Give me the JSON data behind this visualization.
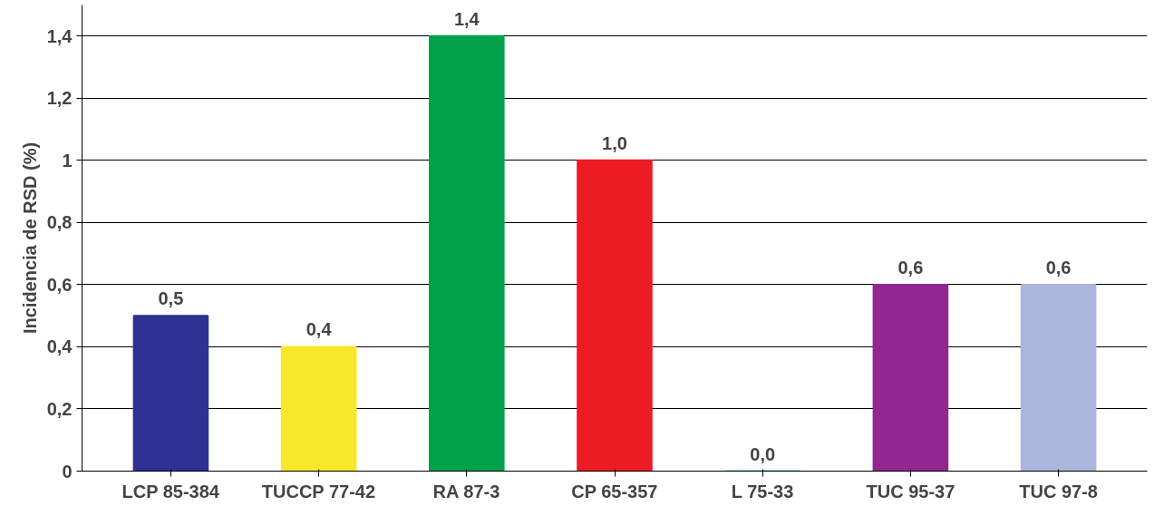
{
  "chart_data": {
    "type": "bar",
    "ylabel": "Incidencia de RSD (%)",
    "categories": [
      "LCP 85-384",
      "TUCCP 77-42",
      "RA 87-3",
      "CP 65-357",
      "L 75-33",
      "TUC 95-37",
      "TUC 97-8"
    ],
    "values": [
      0.5,
      0.4,
      1.4,
      1.0,
      0.0,
      0.6,
      0.6
    ],
    "colors": [
      "#2e3192",
      "#f7e82a",
      "#00a14b",
      "#ed1c24",
      "#33bfbf",
      "#92278f",
      "#aab6dc"
    ],
    "value_labels": [
      "0,5",
      "0,4",
      "1,4",
      "1,0",
      "0,0",
      "0,6",
      "0,6"
    ],
    "ylim": [
      0,
      1.5
    ],
    "yticks": [
      0,
      {
        "value": 0.2,
        "label": "0,2"
      },
      {
        "value": 0.4,
        "label": "0,4"
      },
      {
        "value": 0.6,
        "label": "0,6"
      },
      {
        "value": 0.8,
        "label": "0,8"
      },
      1,
      {
        "value": 1.2,
        "label": "1,2"
      },
      {
        "value": 1.4,
        "label": "1,4"
      }
    ],
    "grid": "y"
  }
}
